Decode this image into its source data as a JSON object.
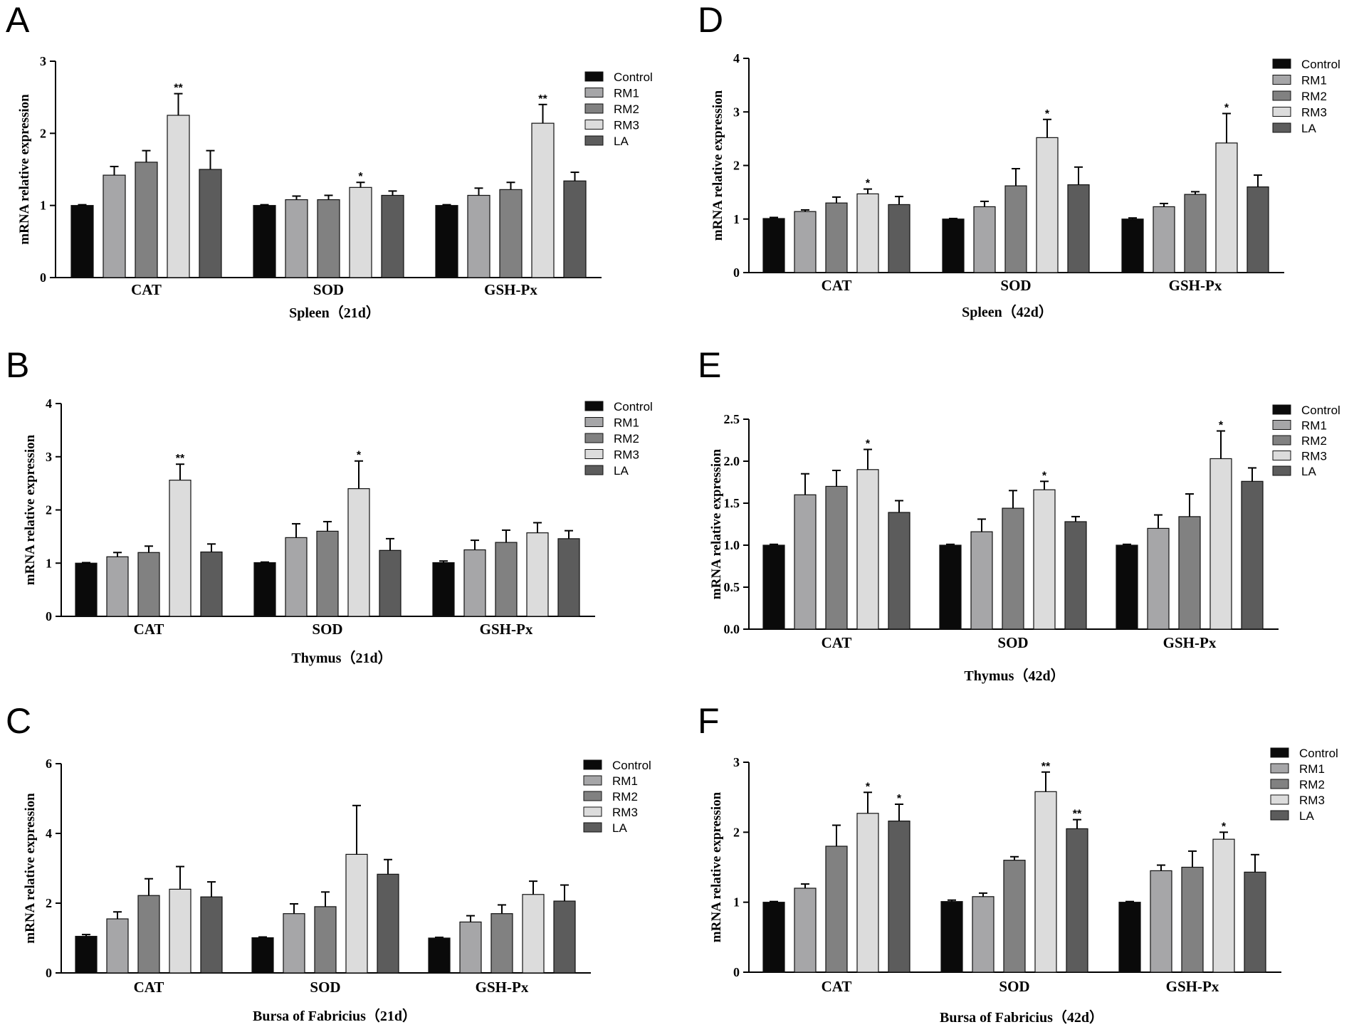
{
  "colors": {
    "Control": "#0a0a0a",
    "RM1": "#a6a6a8",
    "RM2": "#818181",
    "RM3": "#dcdcdc",
    "LA": "#5c5c5c",
    "axis": "#000000",
    "bar_edge": "#111111"
  },
  "chart_data": [
    {
      "panel": "A",
      "type": "bar",
      "xlabel": "Spleen（21d）",
      "ylabel": "mRNA relative expression",
      "ylim": [
        0,
        3
      ],
      "yticks": [
        "0",
        "1",
        "2",
        "3"
      ],
      "categories": [
        "CAT",
        "SOD",
        "GSH-Px"
      ],
      "legend": [
        "Control",
        "RM1",
        "RM2",
        "RM3",
        "LA"
      ],
      "series": [
        {
          "name": "Control",
          "values": [
            1.0,
            1.0,
            1.0
          ],
          "errors": [
            0.01,
            0.01,
            0.01
          ],
          "sig": [
            "",
            "",
            ""
          ]
        },
        {
          "name": "RM1",
          "values": [
            1.42,
            1.08,
            1.14
          ],
          "errors": [
            0.12,
            0.05,
            0.1
          ],
          "sig": [
            "",
            "",
            ""
          ]
        },
        {
          "name": "RM2",
          "values": [
            1.6,
            1.08,
            1.22
          ],
          "errors": [
            0.16,
            0.06,
            0.1
          ],
          "sig": [
            "",
            "",
            ""
          ]
        },
        {
          "name": "RM3",
          "values": [
            2.25,
            1.25,
            2.14
          ],
          "errors": [
            0.3,
            0.07,
            0.26
          ],
          "sig": [
            "**",
            "*",
            "**"
          ]
        },
        {
          "name": "LA",
          "values": [
            1.5,
            1.14,
            1.34
          ],
          "errors": [
            0.26,
            0.06,
            0.12
          ],
          "sig": [
            "",
            "",
            ""
          ]
        }
      ]
    },
    {
      "panel": "B",
      "type": "bar",
      "xlabel": "Thymus（21d）",
      "ylabel": "mRNA relative expression",
      "ylim": [
        0,
        4
      ],
      "yticks": [
        "0",
        "1",
        "2",
        "3",
        "4"
      ],
      "categories": [
        "CAT",
        "SOD",
        "GSH-Px"
      ],
      "legend": [
        "Control",
        "RM1",
        "RM2",
        "RM3",
        "LA"
      ],
      "series": [
        {
          "name": "Control",
          "values": [
            1.0,
            1.01,
            1.01
          ],
          "errors": [
            0.01,
            0.01,
            0.03
          ],
          "sig": [
            "",
            "",
            ""
          ]
        },
        {
          "name": "RM1",
          "values": [
            1.12,
            1.48,
            1.25
          ],
          "errors": [
            0.08,
            0.26,
            0.18
          ],
          "sig": [
            "",
            "",
            ""
          ]
        },
        {
          "name": "RM2",
          "values": [
            1.2,
            1.6,
            1.39
          ],
          "errors": [
            0.12,
            0.18,
            0.23
          ],
          "sig": [
            "",
            "",
            ""
          ]
        },
        {
          "name": "RM3",
          "values": [
            2.56,
            2.4,
            1.57
          ],
          "errors": [
            0.3,
            0.52,
            0.19
          ],
          "sig": [
            "**",
            "*",
            ""
          ]
        },
        {
          "name": "LA",
          "values": [
            1.21,
            1.24,
            1.46
          ],
          "errors": [
            0.15,
            0.22,
            0.15
          ],
          "sig": [
            "",
            "",
            ""
          ]
        }
      ]
    },
    {
      "panel": "C",
      "type": "bar",
      "xlabel": "Bursa of Fabricius（21d）",
      "ylabel": "mRNA relative expression",
      "ylim": [
        0,
        6
      ],
      "yticks": [
        "0",
        "2",
        "4",
        "6"
      ],
      "categories": [
        "CAT",
        "SOD",
        "GSH-Px"
      ],
      "legend": [
        "Control",
        "RM1",
        "RM2",
        "RM3",
        "LA"
      ],
      "series": [
        {
          "name": "Control",
          "values": [
            1.05,
            1.01,
            1.0
          ],
          "errors": [
            0.05,
            0.02,
            0.02
          ],
          "sig": [
            "",
            "",
            ""
          ]
        },
        {
          "name": "RM1",
          "values": [
            1.55,
            1.7,
            1.46
          ],
          "errors": [
            0.2,
            0.28,
            0.18
          ],
          "sig": [
            "",
            "",
            ""
          ]
        },
        {
          "name": "RM2",
          "values": [
            2.22,
            1.9,
            1.7
          ],
          "errors": [
            0.48,
            0.42,
            0.25
          ],
          "sig": [
            "",
            "",
            ""
          ]
        },
        {
          "name": "RM3",
          "values": [
            2.4,
            3.4,
            2.25
          ],
          "errors": [
            0.65,
            1.4,
            0.38
          ],
          "sig": [
            "",
            "",
            ""
          ]
        },
        {
          "name": "LA",
          "values": [
            2.18,
            2.83,
            2.06
          ],
          "errors": [
            0.43,
            0.42,
            0.46
          ],
          "sig": [
            "",
            "",
            ""
          ]
        }
      ]
    },
    {
      "panel": "D",
      "type": "bar",
      "xlabel": "Spleen（42d）",
      "ylabel": "mRNA relative expression",
      "ylim": [
        0,
        4
      ],
      "yticks": [
        "0",
        "1",
        "2",
        "3",
        "4"
      ],
      "categories": [
        "CAT",
        "SOD",
        "GSH-Px"
      ],
      "legend": [
        "Control",
        "RM1",
        "RM2",
        "RM3",
        "LA"
      ],
      "series": [
        {
          "name": "Control",
          "values": [
            1.01,
            1.0,
            1.0
          ],
          "errors": [
            0.02,
            0.01,
            0.02
          ],
          "sig": [
            "",
            "",
            ""
          ]
        },
        {
          "name": "RM1",
          "values": [
            1.14,
            1.23,
            1.23
          ],
          "errors": [
            0.03,
            0.1,
            0.06
          ],
          "sig": [
            "",
            "",
            ""
          ]
        },
        {
          "name": "RM2",
          "values": [
            1.3,
            1.62,
            1.46
          ],
          "errors": [
            0.11,
            0.32,
            0.05
          ],
          "sig": [
            "",
            "",
            ""
          ]
        },
        {
          "name": "RM3",
          "values": [
            1.47,
            2.52,
            2.42
          ],
          "errors": [
            0.09,
            0.34,
            0.55
          ],
          "sig": [
            "*",
            "*",
            "*"
          ]
        },
        {
          "name": "LA",
          "values": [
            1.27,
            1.64,
            1.6
          ],
          "errors": [
            0.15,
            0.33,
            0.22
          ],
          "sig": [
            "",
            "",
            ""
          ]
        }
      ]
    },
    {
      "panel": "E",
      "type": "bar",
      "xlabel": "Thymus（42d）",
      "ylabel": "mRNA relative expression",
      "ylim": [
        0,
        2.5
      ],
      "yticks": [
        "0.0",
        "0.5",
        "1.0",
        "1.5",
        "2.0",
        "2.5"
      ],
      "categories": [
        "CAT",
        "SOD",
        "GSH-Px"
      ],
      "legend": [
        "Control",
        "RM1",
        "RM2",
        "RM3",
        "LA"
      ],
      "series": [
        {
          "name": "Control",
          "values": [
            1.0,
            1.0,
            1.0
          ],
          "errors": [
            0.01,
            0.01,
            0.01
          ],
          "sig": [
            "",
            "",
            ""
          ]
        },
        {
          "name": "RM1",
          "values": [
            1.6,
            1.16,
            1.2
          ],
          "errors": [
            0.25,
            0.15,
            0.16
          ],
          "sig": [
            "",
            "",
            ""
          ]
        },
        {
          "name": "RM2",
          "values": [
            1.7,
            1.44,
            1.34
          ],
          "errors": [
            0.19,
            0.21,
            0.27
          ],
          "sig": [
            "",
            "",
            ""
          ]
        },
        {
          "name": "RM3",
          "values": [
            1.9,
            1.66,
            2.03
          ],
          "errors": [
            0.24,
            0.1,
            0.33
          ],
          "sig": [
            "*",
            "*",
            "*"
          ]
        },
        {
          "name": "LA",
          "values": [
            1.39,
            1.28,
            1.76
          ],
          "errors": [
            0.14,
            0.06,
            0.16
          ],
          "sig": [
            "",
            "",
            ""
          ]
        }
      ]
    },
    {
      "panel": "F",
      "type": "bar",
      "xlabel": "Bursa of Fabricius（42d）",
      "ylabel": "mRNA relative expression",
      "ylim": [
        0,
        3
      ],
      "yticks": [
        "0",
        "1",
        "2",
        "3"
      ],
      "categories": [
        "CAT",
        "SOD",
        "GSH-Px"
      ],
      "legend": [
        "Control",
        "RM1",
        "RM2",
        "RM3",
        "LA"
      ],
      "series": [
        {
          "name": "Control",
          "values": [
            1.0,
            1.01,
            1.0
          ],
          "errors": [
            0.01,
            0.02,
            0.01
          ],
          "sig": [
            "",
            "",
            ""
          ]
        },
        {
          "name": "RM1",
          "values": [
            1.2,
            1.08,
            1.45
          ],
          "errors": [
            0.06,
            0.05,
            0.08
          ],
          "sig": [
            "",
            "",
            ""
          ]
        },
        {
          "name": "RM2",
          "values": [
            1.8,
            1.6,
            1.5
          ],
          "errors": [
            0.3,
            0.05,
            0.23
          ],
          "sig": [
            "",
            "",
            ""
          ]
        },
        {
          "name": "RM3",
          "values": [
            2.27,
            2.58,
            1.9
          ],
          "errors": [
            0.3,
            0.28,
            0.1
          ],
          "sig": [
            "*",
            "**",
            "*"
          ]
        },
        {
          "name": "LA",
          "values": [
            2.16,
            2.05,
            1.43
          ],
          "errors": [
            0.24,
            0.13,
            0.25
          ],
          "sig": [
            "*",
            "**",
            ""
          ]
        }
      ]
    }
  ]
}
